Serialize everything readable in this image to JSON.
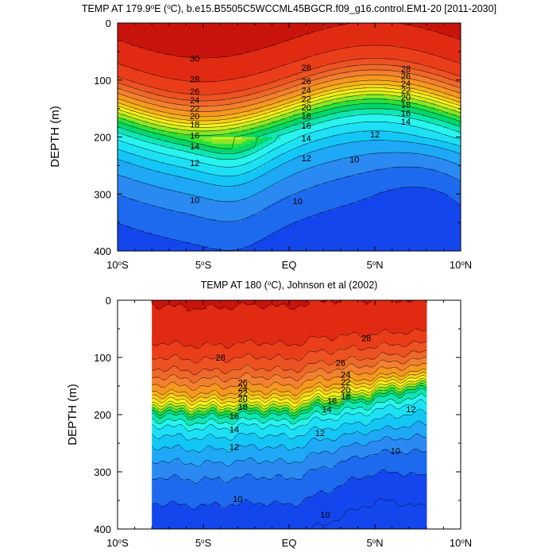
{
  "chart_data": [
    {
      "type": "heatmap",
      "title_pre": "TEMP AT 179.9",
      "title_deg": "o",
      "title_post": "E (",
      "title_unit_deg": "o",
      "title_rest": "C), b.e15.B5505C5WCCML45BGCR.f09_g16.control.EM1-20 [2011-2030]",
      "ylabel": "DEPTH (m)",
      "xlim": [
        -10,
        10
      ],
      "ylim": [
        0,
        400
      ],
      "x_data_range": [
        -10,
        10
      ],
      "yticks": [
        0,
        100,
        200,
        300,
        400
      ],
      "xticks": [
        {
          "v": -10,
          "num": "10",
          "hem": "S"
        },
        {
          "v": -5,
          "num": "5",
          "hem": "S"
        },
        {
          "v": 0,
          "num": "EQ",
          "hem": ""
        },
        {
          "v": 5,
          "num": "5",
          "hem": "N"
        },
        {
          "v": 10,
          "num": "10",
          "hem": "N"
        }
      ],
      "contour_levels": [
        8,
        10,
        12,
        14,
        16,
        18,
        20,
        22,
        24,
        26,
        28,
        30
      ],
      "depth_profile": [
        [
          0,
          30.5
        ],
        [
          60,
          29.6
        ],
        [
          80,
          28.8
        ],
        [
          100,
          27.9
        ],
        [
          120,
          25.8
        ],
        [
          140,
          23.6
        ],
        [
          160,
          20.2
        ],
        [
          180,
          17.6
        ],
        [
          200,
          15.6
        ],
        [
          220,
          14.3
        ],
        [
          250,
          12.6
        ],
        [
          300,
          11.1
        ],
        [
          350,
          10.1
        ],
        [
          400,
          9.2
        ]
      ],
      "labels": [
        {
          "t": "30",
          "x": -5.5,
          "d": 62
        },
        {
          "t": "28",
          "x": -5.5,
          "d": 98
        },
        {
          "t": "26",
          "x": -5.5,
          "d": 120
        },
        {
          "t": "24",
          "x": -5.5,
          "d": 135
        },
        {
          "t": "22",
          "x": -5.5,
          "d": 150
        },
        {
          "t": "20",
          "x": -5.5,
          "d": 163
        },
        {
          "t": "18",
          "x": -5.5,
          "d": 178
        },
        {
          "t": "16",
          "x": -5.5,
          "d": 197
        },
        {
          "t": "14",
          "x": -5.5,
          "d": 216
        },
        {
          "t": "12",
          "x": -5.5,
          "d": 245
        },
        {
          "t": "10",
          "x": -5.5,
          "d": 310
        },
        {
          "t": "28",
          "x": 1.0,
          "d": 78
        },
        {
          "t": "26",
          "x": 1.0,
          "d": 102
        },
        {
          "t": "24",
          "x": 1.0,
          "d": 118
        },
        {
          "t": "22",
          "x": 1.0,
          "d": 133
        },
        {
          "t": "20",
          "x": 1.0,
          "d": 148
        },
        {
          "t": "18",
          "x": 1.0,
          "d": 163
        },
        {
          "t": "16",
          "x": 1.0,
          "d": 180
        },
        {
          "t": "14",
          "x": 1.0,
          "d": 202
        },
        {
          "t": "12",
          "x": 1.0,
          "d": 237
        },
        {
          "t": "10",
          "x": 0.5,
          "d": 312
        },
        {
          "t": "28",
          "x": 6.8,
          "d": 80
        },
        {
          "t": "26",
          "x": 6.8,
          "d": 93
        },
        {
          "t": "24",
          "x": 6.8,
          "d": 106
        },
        {
          "t": "22",
          "x": 6.8,
          "d": 118
        },
        {
          "t": "20",
          "x": 6.8,
          "d": 130
        },
        {
          "t": "18",
          "x": 6.8,
          "d": 143
        },
        {
          "t": "16",
          "x": 6.8,
          "d": 158
        },
        {
          "t": "14",
          "x": 6.8,
          "d": 173
        },
        {
          "t": "12",
          "x": 5.0,
          "d": 195
        },
        {
          "t": "10",
          "x": 3.8,
          "d": 239
        }
      ]
    },
    {
      "type": "heatmap",
      "title_pre": "TEMP AT 180 (",
      "title_deg": "o",
      "title_post": "C), Johnson et al (2002)",
      "ylabel": "DEPTH (m)",
      "xlim": [
        -10,
        10
      ],
      "ylim": [
        0,
        400
      ],
      "x_data_range": [
        -8,
        8
      ],
      "yticks": [
        0,
        100,
        200,
        300,
        400
      ],
      "xticks": [
        {
          "v": -10,
          "num": "10",
          "hem": "S"
        },
        {
          "v": -5,
          "num": "5",
          "hem": "S"
        },
        {
          "v": 0,
          "num": "EQ",
          "hem": ""
        },
        {
          "v": 5,
          "num": "5",
          "hem": "N"
        },
        {
          "v": 10,
          "num": "10",
          "hem": "N"
        }
      ],
      "contour_levels": [
        8,
        10,
        12,
        14,
        16,
        18,
        20,
        22,
        24,
        26,
        28,
        30
      ],
      "depth_profile": [
        [
          0,
          30.0
        ],
        [
          60,
          29.2
        ],
        [
          90,
          28.0
        ],
        [
          110,
          27.0
        ],
        [
          130,
          25.6
        ],
        [
          150,
          24.0
        ],
        [
          170,
          21.0
        ],
        [
          190,
          17.0
        ],
        [
          210,
          15.0
        ],
        [
          230,
          13.8
        ],
        [
          260,
          12.4
        ],
        [
          300,
          11.0
        ],
        [
          350,
          9.9
        ],
        [
          400,
          9.0
        ]
      ],
      "labels": [
        {
          "t": "28",
          "x": -4.0,
          "d": 100
        },
        {
          "t": "26",
          "x": -2.7,
          "d": 144
        },
        {
          "t": "24",
          "x": -2.7,
          "d": 153
        },
        {
          "t": "22",
          "x": -2.7,
          "d": 162
        },
        {
          "t": "20",
          "x": -2.7,
          "d": 172
        },
        {
          "t": "18",
          "x": -2.7,
          "d": 186
        },
        {
          "t": "16",
          "x": -3.2,
          "d": 202
        },
        {
          "t": "14",
          "x": -3.2,
          "d": 226
        },
        {
          "t": "12",
          "x": -3.2,
          "d": 256
        },
        {
          "t": "10",
          "x": -3.0,
          "d": 347
        },
        {
          "t": "28",
          "x": 4.5,
          "d": 66
        },
        {
          "t": "26",
          "x": 3.0,
          "d": 109
        },
        {
          "t": "24",
          "x": 3.3,
          "d": 130
        },
        {
          "t": "22",
          "x": 3.3,
          "d": 143
        },
        {
          "t": "20",
          "x": 3.3,
          "d": 156
        },
        {
          "t": "18",
          "x": 3.3,
          "d": 168
        },
        {
          "t": "16",
          "x": 2.5,
          "d": 176
        },
        {
          "t": "14",
          "x": 2.2,
          "d": 190
        },
        {
          "t": "12",
          "x": 1.8,
          "d": 232
        },
        {
          "t": "12",
          "x": 7.1,
          "d": 190
        },
        {
          "t": "10",
          "x": 6.2,
          "d": 263
        },
        {
          "t": "10",
          "x": 2.1,
          "d": 375
        }
      ]
    }
  ]
}
